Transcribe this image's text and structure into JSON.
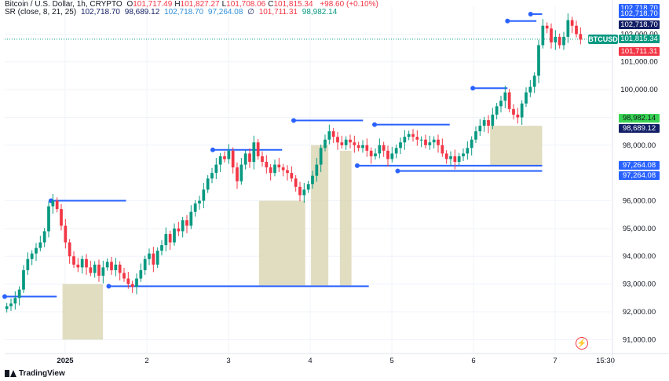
{
  "header": {
    "title": "Bitcoin / U.S. Dollar, 1h, CRYPTO",
    "ohlc": [
      {
        "k": "O",
        "v": "101,717.49"
      },
      {
        "k": "H",
        "v": "101,827.27"
      },
      {
        "k": "L",
        "v": "101,708.06"
      },
      {
        "k": "C",
        "v": "101,815.34"
      }
    ],
    "change": "+98.60 (+0.10%)",
    "indicator_name": "SR (close, 8, 21, 25)",
    "indicator_values": [
      "102,718.70",
      "98,689.12",
      "102,718.70",
      "97,264.08",
      "∅",
      "101,711.31",
      "98,982.14"
    ]
  },
  "symbol_tag": "BTCUSD",
  "price_tags": [
    {
      "label": "102,718.70",
      "price": 102930,
      "bg": "#2962ff"
    },
    {
      "label": "102,718.70",
      "price": 102718.7,
      "bg": "#2962ff"
    },
    {
      "label": "102,718.70",
      "price": 102330,
      "bg": "#131f66"
    },
    {
      "label": "101,815.34",
      "price": 101815.34,
      "bg": "#089981"
    },
    {
      "label": "101,711.31",
      "price": 101380,
      "bg": "#f23645"
    },
    {
      "label": "98,982.14",
      "price": 98982.14,
      "bg": "#39d353",
      "dark": true
    },
    {
      "label": "98,689.12",
      "price": 98600,
      "bg": "#131f66"
    },
    {
      "label": "97,264.08",
      "price": 97264.08,
      "bg": "#2962ff"
    },
    {
      "label": "97,264.08",
      "price": 96900,
      "bg": "#2962ff"
    }
  ],
  "icons": {
    "logo": "tradingview-logo",
    "flash": "lightning-icon"
  },
  "logo_text": "TradingView",
  "colors": {
    "up": "#089981",
    "down": "#f23645",
    "resistance": "#2962ff",
    "zone": "#d9d4b0"
  },
  "chart_data": {
    "type": "candlestick",
    "symbol": "BTCUSD",
    "timeframe": "1h",
    "ylim": [
      90500,
      103000
    ],
    "y_ticks": [
      91000,
      92000,
      93000,
      94000,
      95000,
      96000,
      98000,
      99000,
      100000,
      101000,
      102000
    ],
    "y_tick_labels": [
      "91,000.00",
      "92,000.00",
      "93,000.00",
      "94,000.00",
      "95,000.00",
      "96,000.00",
      "98,000.00",
      "99,000.00",
      "100,000.00",
      "101,000.00",
      "102,000.00"
    ],
    "x_ticks": [
      {
        "label": "2025",
        "day": 1
      },
      {
        "label": "2",
        "day": 2
      },
      {
        "label": "3",
        "day": 3
      },
      {
        "label": "4",
        "day": 4
      },
      {
        "label": "5",
        "day": 5
      },
      {
        "label": "6",
        "day": 6
      },
      {
        "label": "7",
        "day": 7
      }
    ],
    "x_end_label": "15:30",
    "current_price": 101815.34,
    "closes": [
      92200,
      92300,
      92500,
      92800,
      93500,
      93900,
      94100,
      94300,
      94500,
      94900,
      95800,
      96000,
      95700,
      95100,
      94500,
      94000,
      93700,
      93600,
      93900,
      93600,
      93400,
      93700,
      93300,
      93600,
      93800,
      93500,
      93700,
      93400,
      93200,
      93000,
      92900,
      93200,
      93500,
      93900,
      94100,
      93700,
      94200,
      94400,
      94800,
      94500,
      95000,
      94900,
      95300,
      95100,
      95600,
      95900,
      96000,
      96400,
      96800,
      97000,
      97300,
      97600,
      97500,
      97800,
      97200,
      96700,
      97300,
      97700,
      97400,
      98100,
      97600,
      97400,
      97200,
      97000,
      97300,
      97200,
      97100,
      97000,
      96800,
      96500,
      96200,
      96400,
      96600,
      96900,
      97300,
      97900,
      98200,
      98500,
      98300,
      98100,
      98000,
      98200,
      98100,
      98000,
      97900,
      98000,
      97800,
      97600,
      97700,
      98000,
      97800,
      97500,
      97700,
      97900,
      98100,
      98300,
      98400,
      98300,
      98200,
      98200,
      98000,
      98100,
      98200,
      98000,
      97700,
      97500,
      97600,
      97400,
      97600,
      97700,
      97900,
      98200,
      98500,
      98700,
      98900,
      98700,
      99100,
      99400,
      99600,
      99900,
      99300,
      99100,
      99000,
      99500,
      99900,
      100100,
      100500,
      101600,
      102300,
      102200,
      101700,
      101900,
      101600,
      101900,
      102500,
      102300,
      102000,
      101800
    ],
    "supports": [
      {
        "from": 0.0,
        "to": 0.09,
        "price": 92550
      },
      {
        "from": 0.18,
        "to": 0.63,
        "price": 92920
      },
      {
        "from": 0.68,
        "to": 0.93,
        "price": 97070
      },
      {
        "from": 0.61,
        "to": 0.93,
        "price": 97264.08
      }
    ],
    "resistances": [
      {
        "from": 0.08,
        "to": 0.21,
        "price": 96000
      },
      {
        "from": 0.36,
        "to": 0.48,
        "price": 97830
      },
      {
        "from": 0.5,
        "to": 0.62,
        "price": 98890
      },
      {
        "from": 0.64,
        "to": 0.77,
        "price": 98740
      },
      {
        "from": 0.81,
        "to": 0.87,
        "price": 100050
      },
      {
        "from": 0.87,
        "to": 0.92,
        "price": 102470
      },
      {
        "from": 0.91,
        "to": 0.93,
        "price": 102718.7
      }
    ],
    "zones": [
      {
        "from": 0.1,
        "to": 0.17,
        "top": 93000,
        "bottom": 91000
      },
      {
        "from": 0.44,
        "to": 0.52,
        "top": 96000,
        "bottom": 92950
      },
      {
        "from": 0.53,
        "to": 0.56,
        "top": 98000,
        "bottom": 92950
      },
      {
        "from": 0.58,
        "to": 0.6,
        "top": 97800,
        "bottom": 92950
      },
      {
        "from": 0.84,
        "to": 0.93,
        "top": 98700,
        "bottom": 97270
      }
    ]
  }
}
